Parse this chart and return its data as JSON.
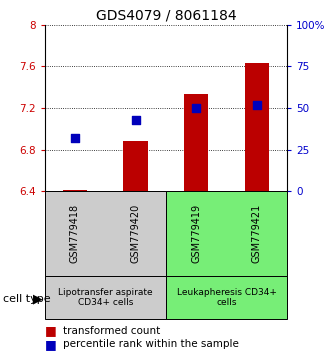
{
  "title": "GDS4079 / 8061184",
  "samples": [
    "GSM779418",
    "GSM779420",
    "GSM779419",
    "GSM779421"
  ],
  "transformed_counts": [
    6.41,
    6.88,
    7.33,
    7.63
  ],
  "percentile_ranks": [
    32,
    43,
    50,
    52
  ],
  "ylim_left": [
    6.4,
    8.0
  ],
  "ylim_right": [
    0,
    100
  ],
  "yticks_left": [
    6.4,
    6.8,
    7.2,
    7.6,
    8.0
  ],
  "ytick_labels_left": [
    "6.4",
    "6.8",
    "7.2",
    "7.6",
    "8"
  ],
  "yticks_right": [
    0,
    25,
    50,
    75,
    100
  ],
  "ytick_labels_right": [
    "0",
    "25",
    "50",
    "75",
    "100%"
  ],
  "bar_color": "#bb0000",
  "dot_color": "#0000bb",
  "bar_bottom": 6.4,
  "groups": [
    {
      "label": "Lipotransfer aspirate\nCD34+ cells",
      "samples": [
        0,
        1
      ],
      "color": "#cccccc"
    },
    {
      "label": "Leukapheresis CD34+\ncells",
      "samples": [
        2,
        3
      ],
      "color": "#77ee77"
    }
  ],
  "cell_type_label": "cell type",
  "legend_bar_label": "transformed count",
  "legend_dot_label": "percentile rank within the sample",
  "title_fontsize": 10,
  "tick_fontsize": 7.5,
  "sample_fontsize": 7,
  "group_fontsize": 6.5,
  "legend_fontsize": 7.5,
  "cell_type_fontsize": 8
}
